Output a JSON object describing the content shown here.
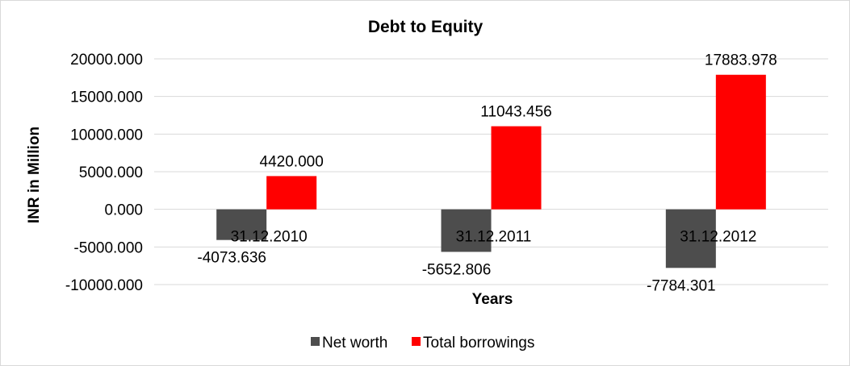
{
  "chart_data": {
    "type": "bar",
    "title": "Debt to Equity",
    "xlabel": "Years",
    "ylabel": "INR in Million",
    "categories": [
      "31.12.2010",
      "31.12.2011",
      "31.12.2012"
    ],
    "series": [
      {
        "name": "Net worth",
        "values": [
          -4073.636,
          -5652.806,
          -7784.301
        ],
        "color": "#4d4d4d"
      },
      {
        "name": "Total borrowings",
        "values": [
          4420.0,
          11043.456,
          17883.978
        ],
        "color": "#ff0000"
      }
    ],
    "ylim": [
      -10000,
      20000
    ],
    "yticks": [
      "20000.000",
      "15000.000",
      "10000.000",
      "5000.000",
      "0.000",
      "-5000.000",
      "-10000.000"
    ],
    "data_labels": [
      [
        "-4073.636",
        "-5652.806",
        "-7784.301"
      ],
      [
        "4420.000",
        "11043.456",
        "17883.978"
      ]
    ],
    "grid": true,
    "legend_position": "bottom"
  }
}
